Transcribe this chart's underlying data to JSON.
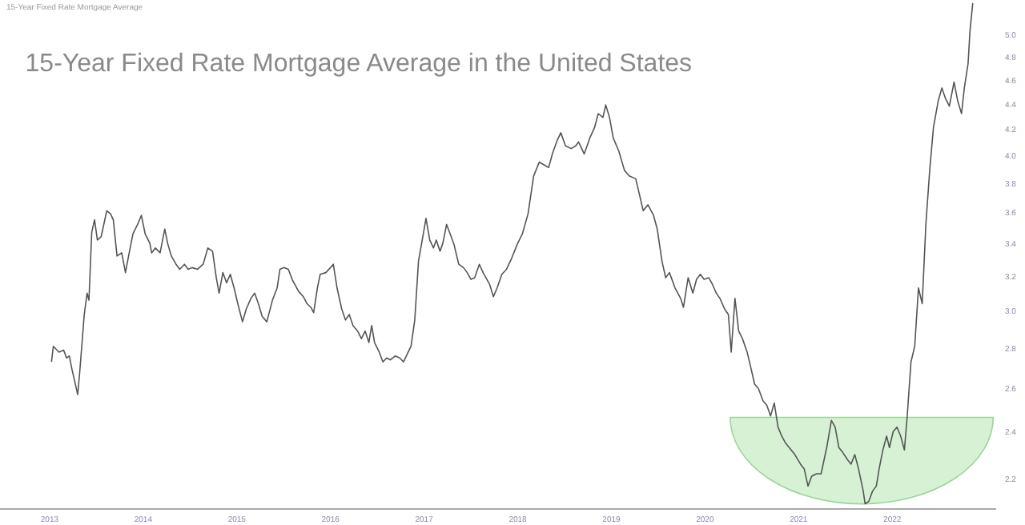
{
  "chart_data": {
    "type": "line",
    "title": "15-Year Fixed Rate Mortgage Average in the United States",
    "subtitle": "15-Year Fixed Rate Mortgage Average",
    "log": true,
    "xlim": [
      2012.47,
      2023.11
    ],
    "ylim": [
      2.08,
      5.33
    ],
    "xticks": [
      2013,
      2014,
      2015,
      2016,
      2017,
      2018,
      2019,
      2020,
      2021,
      2022
    ],
    "yticks": [
      {
        "value": 2.2,
        "label": "2.2"
      },
      {
        "value": 2.4,
        "label": "2.4"
      },
      {
        "value": 2.6,
        "label": "2.6"
      },
      {
        "value": 2.8,
        "label": "2.8"
      },
      {
        "value": 3,
        "label": "3.0"
      },
      {
        "value": 3.2,
        "label": "3.2"
      },
      {
        "value": 3.4,
        "label": "3.4"
      },
      {
        "value": 3.6,
        "label": "3.6"
      },
      {
        "value": 3.8,
        "label": "3.8"
      },
      {
        "value": 4,
        "label": "4.0"
      },
      {
        "value": 4.2,
        "label": "4.2"
      },
      {
        "value": 4.4,
        "label": "4.4"
      },
      {
        "value": 4.6,
        "label": "4.6"
      },
      {
        "value": 4.8,
        "label": "4.8"
      },
      {
        "value": 5,
        "label": "5.0"
      }
    ],
    "series": [
      {
        "color": "#555555",
        "x": [
          2013.02,
          2013.04,
          2013.1,
          2013.15,
          2013.18,
          2013.21,
          2013.24,
          2013.3,
          2013.32,
          2013.37,
          2013.4,
          2013.42,
          2013.45,
          2013.48,
          2013.51,
          2013.55,
          2013.61,
          2013.65,
          2013.68,
          2013.72,
          2013.77,
          2013.81,
          2013.85,
          2013.89,
          2013.94,
          2013.98,
          2014.02,
          2014.07,
          2014.09,
          2014.13,
          2014.18,
          2014.23,
          2014.26,
          2014.3,
          2014.35,
          2014.39,
          2014.44,
          2014.48,
          2014.52,
          2014.58,
          2014.64,
          2014.69,
          2014.74,
          2014.78,
          2014.81,
          2014.85,
          2014.89,
          2014.93,
          2014.97,
          2015.01,
          2015.06,
          2015.1,
          2015.15,
          2015.19,
          2015.23,
          2015.27,
          2015.32,
          2015.38,
          2015.43,
          2015.46,
          2015.5,
          2015.55,
          2015.59,
          2015.66,
          2015.71,
          2015.75,
          2015.79,
          2015.82,
          2015.86,
          2015.89,
          2015.95,
          2016.0,
          2016.03,
          2016.07,
          2016.12,
          2016.16,
          2016.2,
          2016.24,
          2016.29,
          2016.33,
          2016.37,
          2016.41,
          2016.44,
          2016.47,
          2016.52,
          2016.56,
          2016.6,
          2016.64,
          2016.69,
          2016.74,
          2016.78,
          2016.83,
          2016.86,
          2016.9,
          2016.94,
          2016.98,
          2017.02,
          2017.06,
          2017.1,
          2017.13,
          2017.17,
          2017.2,
          2017.24,
          2017.29,
          2017.32,
          2017.37,
          2017.42,
          2017.46,
          2017.5,
          2017.54,
          2017.59,
          2017.63,
          2017.67,
          2017.7,
          2017.74,
          2017.78,
          2017.83,
          2017.88,
          2017.93,
          2018.0,
          2018.05,
          2018.11,
          2018.17,
          2018.23,
          2018.28,
          2018.33,
          2018.37,
          2018.42,
          2018.46,
          2018.51,
          2018.57,
          2018.62,
          2018.65,
          2018.71,
          2018.77,
          2018.82,
          2018.86,
          2018.91,
          2018.94,
          2018.98,
          2019.02,
          2019.08,
          2019.14,
          2019.19,
          2019.26,
          2019.3,
          2019.34,
          2019.39,
          2019.45,
          2019.49,
          2019.54,
          2019.58,
          2019.62,
          2019.68,
          2019.74,
          2019.77,
          2019.82,
          2019.87,
          2019.91,
          2019.95,
          2019.99,
          2020.04,
          2020.08,
          2020.12,
          2020.16,
          2020.21,
          2020.25,
          2020.28,
          2020.32,
          2020.36,
          2020.4,
          2020.45,
          2020.49,
          2020.53,
          2020.57,
          2020.62,
          2020.66,
          2020.7,
          2020.74,
          2020.78,
          2020.82,
          2020.86,
          2020.9,
          2020.96,
          2021.02,
          2021.06,
          2021.1,
          2021.14,
          2021.19,
          2021.24,
          2021.3,
          2021.35,
          2021.39,
          2021.43,
          2021.47,
          2021.52,
          2021.56,
          2021.6,
          2021.64,
          2021.69,
          2021.71,
          2021.75,
          2021.79,
          2021.83,
          2021.86,
          2021.9,
          2021.94,
          2021.97,
          2022.01,
          2022.05,
          2022.09,
          2022.13,
          2022.16,
          2022.2,
          2022.24,
          2022.28,
          2022.32,
          2022.36,
          2022.4,
          2022.44,
          2022.49,
          2022.53,
          2022.57,
          2022.61,
          2022.66,
          2022.7,
          2022.74,
          2022.77,
          2022.81,
          2022.83,
          2022.86
        ],
        "values": [
          2.73,
          2.81,
          2.78,
          2.79,
          2.75,
          2.76,
          2.69,
          2.57,
          2.67,
          2.98,
          3.1,
          3.06,
          3.47,
          3.55,
          3.42,
          3.44,
          3.61,
          3.59,
          3.55,
          3.32,
          3.34,
          3.22,
          3.34,
          3.46,
          3.52,
          3.58,
          3.46,
          3.4,
          3.34,
          3.37,
          3.34,
          3.49,
          3.4,
          3.32,
          3.27,
          3.24,
          3.27,
          3.24,
          3.25,
          3.24,
          3.27,
          3.37,
          3.35,
          3.19,
          3.1,
          3.22,
          3.16,
          3.21,
          3.13,
          3.04,
          2.94,
          3.01,
          3.07,
          3.1,
          3.04,
          2.97,
          2.94,
          3.06,
          3.13,
          3.24,
          3.25,
          3.24,
          3.18,
          3.11,
          3.08,
          3.04,
          3.02,
          2.99,
          3.13,
          3.21,
          3.22,
          3.25,
          3.27,
          3.13,
          3.01,
          2.95,
          2.98,
          2.92,
          2.89,
          2.85,
          2.89,
          2.83,
          2.92,
          2.83,
          2.78,
          2.73,
          2.75,
          2.74,
          2.76,
          2.75,
          2.73,
          2.78,
          2.81,
          2.95,
          3.29,
          3.42,
          3.56,
          3.42,
          3.37,
          3.42,
          3.35,
          3.4,
          3.52,
          3.44,
          3.39,
          3.27,
          3.25,
          3.22,
          3.18,
          3.19,
          3.27,
          3.22,
          3.18,
          3.15,
          3.08,
          3.13,
          3.21,
          3.24,
          3.3,
          3.4,
          3.46,
          3.59,
          3.85,
          3.95,
          3.93,
          3.91,
          4.01,
          4.11,
          4.17,
          4.07,
          4.05,
          4.07,
          4.1,
          4.01,
          4.13,
          4.21,
          4.32,
          4.29,
          4.39,
          4.29,
          4.13,
          4.03,
          3.89,
          3.85,
          3.83,
          3.72,
          3.61,
          3.65,
          3.58,
          3.49,
          3.29,
          3.19,
          3.22,
          3.13,
          3.07,
          3.02,
          3.19,
          3.1,
          3.18,
          3.21,
          3.18,
          3.19,
          3.15,
          3.1,
          3.07,
          3.01,
          2.98,
          2.78,
          3.07,
          2.89,
          2.85,
          2.78,
          2.7,
          2.62,
          2.6,
          2.54,
          2.52,
          2.47,
          2.53,
          2.42,
          2.38,
          2.35,
          2.33,
          2.3,
          2.26,
          2.24,
          2.17,
          2.21,
          2.22,
          2.22,
          2.33,
          2.45,
          2.42,
          2.33,
          2.31,
          2.28,
          2.26,
          2.3,
          2.24,
          2.15,
          2.1,
          2.11,
          2.15,
          2.17,
          2.24,
          2.32,
          2.38,
          2.33,
          2.4,
          2.42,
          2.38,
          2.32,
          2.47,
          2.73,
          2.81,
          3.13,
          3.04,
          3.53,
          3.89,
          4.21,
          4.42,
          4.53,
          4.44,
          4.38,
          4.58,
          4.42,
          4.32,
          4.53,
          4.74,
          5.03,
          5.3
        ]
      }
    ]
  }
}
